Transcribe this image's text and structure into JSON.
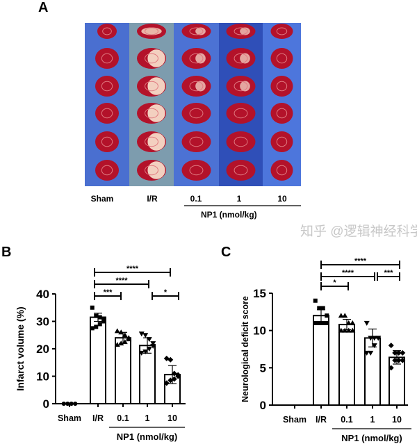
{
  "panel_a": {
    "letter": "A",
    "groups": [
      "Sham",
      "I/R",
      "0.1",
      "1",
      "10"
    ],
    "column_colors": [
      "#4a6fd0",
      "#7d9cae",
      "#4c72d4",
      "#2f4fb8",
      "#4d76dc"
    ],
    "dose_label": "NP1 (nmol/kg)"
  },
  "chart_data": [
    {
      "type": "bar",
      "letter": "B",
      "categories": [
        "Sham",
        "I/R",
        "0.1",
        "1",
        "10"
      ],
      "values": [
        0,
        31.5,
        24,
        21.2,
        10.6
      ],
      "sd": [
        0,
        1.5,
        2,
        2.8,
        3.3
      ],
      "points": [
        [
          0,
          0,
          0,
          0,
          0,
          0,
          0,
          0
        ],
        [
          35,
          32,
          31.5,
          31,
          30,
          29,
          28,
          27.5
        ],
        [
          26.5,
          26,
          25,
          24,
          23.5,
          22.5,
          22,
          21.5
        ],
        [
          25.5,
          25,
          23.5,
          22,
          21,
          20,
          19,
          18.5
        ],
        [
          16.5,
          16,
          11,
          10.5,
          10,
          9,
          8.5,
          7.5
        ]
      ],
      "markers": [
        "circle",
        "square",
        "triangle-up",
        "triangle-down",
        "diamond"
      ],
      "ylabel": "Infarct volume (%)",
      "ylim": [
        0,
        40
      ],
      "yticks": [
        "0",
        "10",
        "20",
        "30",
        "40"
      ],
      "group_label": "NP1 (nmol/kg)",
      "significance": [
        {
          "from": "I/R",
          "to": "10",
          "label": "****"
        },
        {
          "from": "I/R",
          "to": "1",
          "label": "****"
        },
        {
          "from": "I/R",
          "to": "0.1",
          "label": "***"
        },
        {
          "from": "1",
          "to": "10",
          "label": "*"
        }
      ]
    },
    {
      "type": "bar",
      "letter": "C",
      "categories": [
        "Sham",
        "I/R",
        "0.1",
        "1",
        "10"
      ],
      "values": [
        null,
        12,
        10.8,
        9,
        6.4
      ],
      "sd": [
        0,
        0.8,
        0.7,
        1.2,
        0.9
      ],
      "points": [
        [],
        [
          14,
          13,
          13,
          12,
          11,
          11,
          11,
          11
        ],
        [
          12,
          12,
          11,
          11,
          10,
          10,
          10,
          10
        ],
        [
          11,
          9,
          9,
          9,
          9,
          8,
          7,
          7
        ],
        [
          8,
          7,
          7,
          7,
          6,
          6,
          6,
          5
        ]
      ],
      "markers": [
        "circle",
        "square",
        "triangle-up",
        "triangle-down",
        "diamond"
      ],
      "ylabel": "Neurological deficit score",
      "ylim": [
        0,
        15
      ],
      "yticks": [
        "0",
        "5",
        "10",
        "15"
      ],
      "group_label": "NP1 (nmol/kg)",
      "significance": [
        {
          "from": "I/R",
          "to": "10",
          "label": "****"
        },
        {
          "from": "I/R",
          "to": "1",
          "label": "****"
        },
        {
          "from": "1",
          "to": "10",
          "label": "***"
        },
        {
          "from": "I/R",
          "to": "0.1",
          "label": "*"
        }
      ]
    }
  ],
  "watermark": "知乎 @逻辑神经科学"
}
